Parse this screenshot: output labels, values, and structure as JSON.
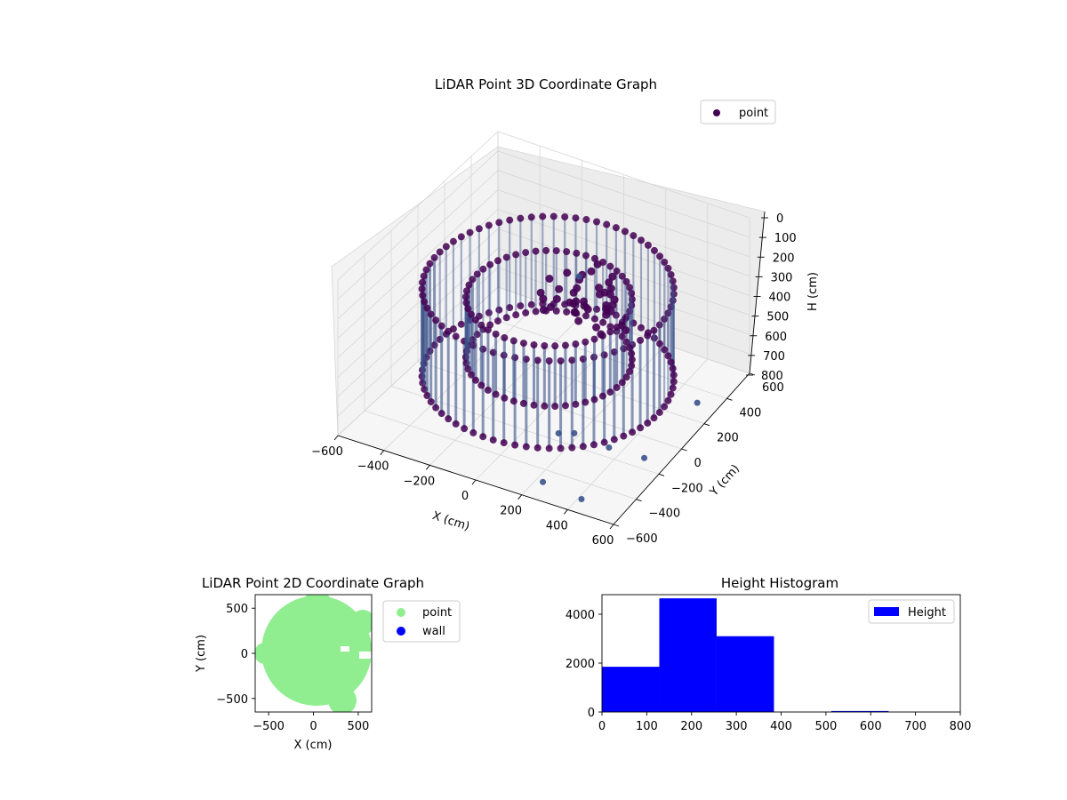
{
  "colors": {
    "point_dark": "#440154",
    "point_mid": "#3b528b",
    "pane": "#f2f2f2",
    "grid": "#d6d6d6",
    "point_2d": "#90ee90",
    "wall": "#0000ff",
    "hist_bar": "#0000ff"
  },
  "chart_data": [
    {
      "type": "scatter",
      "title": "LiDAR Point 3D Coordinate Graph",
      "xlabel": "X (cm)",
      "ylabel": "Y (cm)",
      "zlabel": "H (cm)",
      "xlim": [
        -600,
        600
      ],
      "ylim": [
        -600,
        600
      ],
      "zlim": [
        0,
        800
      ],
      "z_inverted": true,
      "xticks": [
        "−600",
        "−400",
        "−200",
        "0",
        "200",
        "400",
        "600"
      ],
      "yticks": [
        "−600",
        "−400",
        "−200",
        "0",
        "200",
        "400",
        "600"
      ],
      "zticks": [
        "0",
        "100",
        "200",
        "300",
        "400",
        "500",
        "600",
        "700",
        "800"
      ],
      "legend": {
        "position": "top-right",
        "entries": [
          "point"
        ]
      },
      "grid": true,
      "series": [
        {
          "name": "point",
          "rings": [
            {
              "shape": "circle",
              "radius": 500,
              "h_top": 200,
              "h_bottom": 650
            },
            {
              "shape": "circle",
              "radius": 330,
              "h_top": 250,
              "h_bottom": 560
            }
          ],
          "outliers": [
            {
              "x": 350,
              "y": -150,
              "h": 790
            },
            {
              "x": 230,
              "y": -480,
              "h": 800
            },
            {
              "x": 420,
              "y": -520,
              "h": 790
            },
            {
              "x": 560,
              "y": -250,
              "h": 700
            },
            {
              "x": 620,
              "y": 100,
              "h": 620
            },
            {
              "x": 150,
              "y": -200,
              "h": 760
            },
            {
              "x": 210,
              "y": -180,
              "h": 750
            },
            {
              "x": 100,
              "y": 60,
              "h": 140
            }
          ]
        }
      ]
    },
    {
      "type": "scatter",
      "title": "LiDAR Point 2D Coordinate Graph",
      "xlabel": "X (cm)",
      "ylabel": "Y (cm)",
      "xlim": [
        -650,
        650
      ],
      "ylim": [
        -650,
        650
      ],
      "xticks": [
        "−500",
        "0",
        "500"
      ],
      "yticks": [
        "500",
        "0",
        "−500"
      ],
      "legend": {
        "position": "outside-right",
        "entries": [
          "point",
          "wall"
        ]
      },
      "series": [
        {
          "name": "point",
          "center": [
            50,
            20
          ],
          "radius": 560
        },
        {
          "name": "wall",
          "points": []
        }
      ]
    },
    {
      "type": "bar",
      "title": "Height Histogram",
      "xlabel": "",
      "ylabel": "",
      "xlim": [
        0,
        800
      ],
      "ylim": [
        0,
        4800
      ],
      "xticks": [
        "0",
        "100",
        "200",
        "300",
        "400",
        "500",
        "600",
        "700",
        "800"
      ],
      "yticks": [
        "0",
        "2000",
        "4000"
      ],
      "legend": {
        "position": "top-right",
        "entries": [
          "Height"
        ]
      },
      "bin_edges": [
        0,
        128,
        256,
        384,
        512,
        640,
        768
      ],
      "values": [
        1850,
        4650,
        3100,
        0,
        40,
        0
      ],
      "series": [
        {
          "name": "Height"
        }
      ]
    }
  ]
}
